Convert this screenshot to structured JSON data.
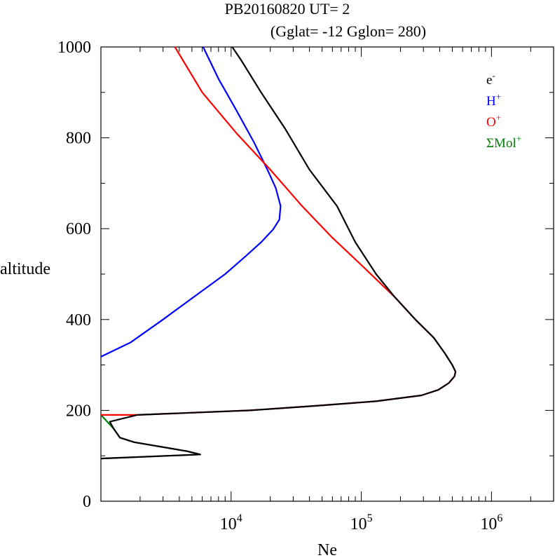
{
  "chart_data": {
    "type": "line",
    "title": "PB20160820   UT=  2",
    "subtitle": "(Gglat= -12   Gglon=  280)",
    "xlabel": "Ne",
    "ylabel": "altitude",
    "x_scale": "log",
    "xlim": [
      1000,
      3000000
    ],
    "ylim": [
      0,
      1000
    ],
    "x_ticks": [
      {
        "value": 10000,
        "base": "10",
        "exp": "4"
      },
      {
        "value": 100000,
        "base": "10",
        "exp": "5"
      },
      {
        "value": 1000000,
        "base": "10",
        "exp": "6"
      }
    ],
    "y_ticks": [
      0,
      200,
      400,
      600,
      800,
      1000
    ],
    "grid": false,
    "legend_position": "top-right",
    "series": [
      {
        "name": "e-",
        "label_base": "e",
        "label_sup": "-",
        "color": "#000000",
        "points": [
          [
            1000,
            94
          ],
          [
            5800,
            103
          ],
          [
            4600,
            110
          ],
          [
            1800,
            130
          ],
          [
            1400,
            140
          ],
          [
            1250,
            160
          ],
          [
            1170,
            175
          ],
          [
            1900,
            190
          ],
          [
            14000,
            200
          ],
          [
            45000,
            210
          ],
          [
            130000,
            220
          ],
          [
            290000,
            233
          ],
          [
            390000,
            245
          ],
          [
            470000,
            260
          ],
          [
            520000,
            275
          ],
          [
            530000,
            285
          ],
          [
            500000,
            300
          ],
          [
            440000,
            325
          ],
          [
            360000,
            360
          ],
          [
            260000,
            400
          ],
          [
            180000,
            450
          ],
          [
            130000,
            500
          ],
          [
            90000,
            570
          ],
          [
            65000,
            650
          ],
          [
            40000,
            730
          ],
          [
            26000,
            820
          ],
          [
            17000,
            900
          ],
          [
            12000,
            970
          ],
          [
            10200,
            1000
          ]
        ]
      },
      {
        "name": "H+",
        "label_base": "H",
        "label_sup": "+",
        "color": "#0000ff",
        "points": [
          [
            1000,
            318
          ],
          [
            1700,
            350
          ],
          [
            3000,
            400
          ],
          [
            5800,
            460
          ],
          [
            9000,
            500
          ],
          [
            13000,
            540
          ],
          [
            17000,
            570
          ],
          [
            21000,
            598
          ],
          [
            23500,
            620
          ],
          [
            24000,
            650
          ],
          [
            22000,
            690
          ],
          [
            19000,
            730
          ],
          [
            15000,
            790
          ],
          [
            11000,
            860
          ],
          [
            8000,
            930
          ],
          [
            6100,
            1000
          ]
        ]
      },
      {
        "name": "O+",
        "label_base": "O",
        "label_sup": "+",
        "color": "#ff0000",
        "points": [
          [
            1000,
            190
          ],
          [
            1900,
            190
          ],
          [
            14000,
            200
          ],
          [
            45000,
            210
          ],
          [
            130000,
            220
          ],
          [
            290000,
            233
          ],
          [
            390000,
            245
          ],
          [
            470000,
            260
          ],
          [
            520000,
            275
          ],
          [
            530000,
            285
          ],
          [
            500000,
            300
          ],
          [
            440000,
            325
          ],
          [
            360000,
            360
          ],
          [
            260000,
            400
          ],
          [
            180000,
            450
          ],
          [
            100000,
            520
          ],
          [
            60000,
            580
          ],
          [
            35000,
            650
          ],
          [
            20000,
            730
          ],
          [
            11000,
            810
          ],
          [
            6000,
            900
          ],
          [
            3700,
            1000
          ]
        ]
      },
      {
        "name": "ΣMol+",
        "label_base": "ΣMol",
        "label_sup": "+",
        "color": "#008000",
        "points": [
          [
            1000,
            94
          ],
          [
            5800,
            103
          ],
          [
            4600,
            110
          ],
          [
            1800,
            130
          ],
          [
            1400,
            140
          ],
          [
            1250,
            160
          ],
          [
            1000,
            190
          ]
        ]
      }
    ]
  }
}
